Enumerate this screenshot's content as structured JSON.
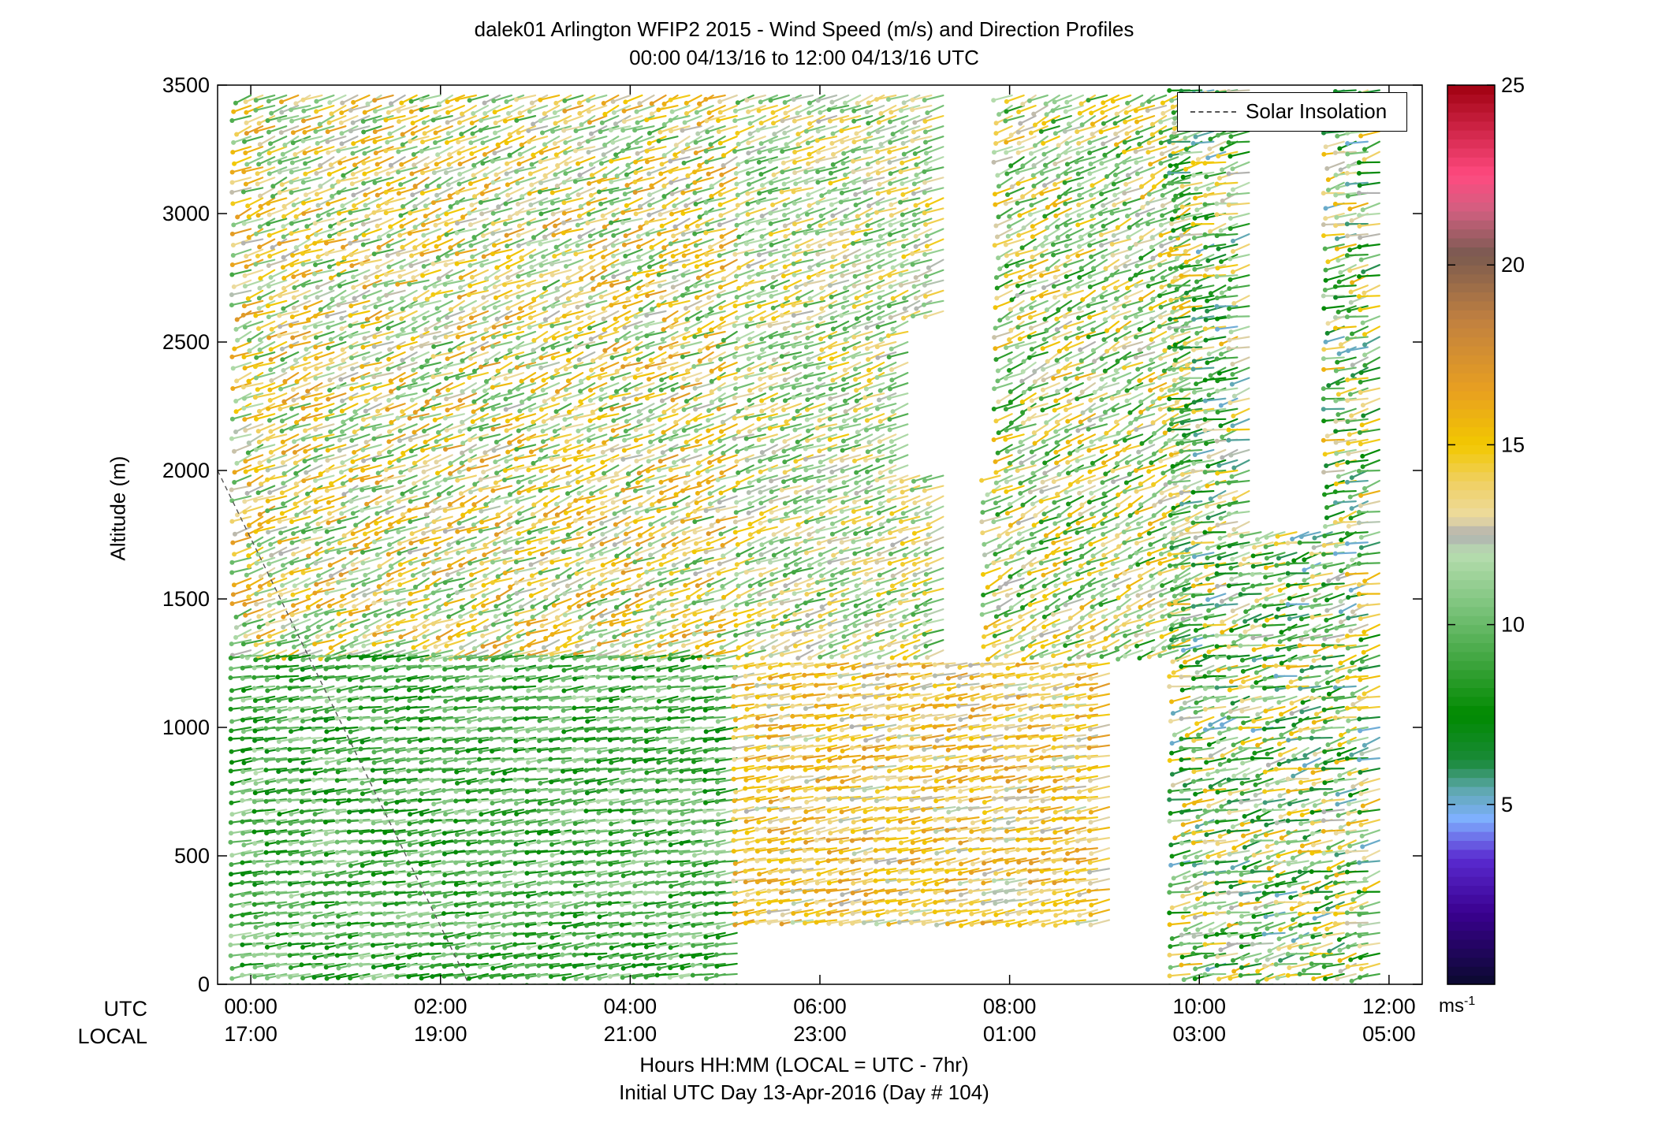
{
  "chart_data": {
    "type": "wind-barb-profile",
    "title": "dalek01 Arlington WFIP2 2015 - Wind Speed (m/s) and Direction Profiles",
    "subtitle": "00:00 04/13/16 to 12:00 04/13/16  UTC",
    "ylabel": "Altitude (m)",
    "xlabel": "Hours HH:MM  (LOCAL = UTC - 7hr)",
    "xlabel2": "Initial UTC Day 13-Apr-2016 (Day # 104)",
    "row_label_utc": "UTC",
    "row_label_local": "LOCAL",
    "ylim": [
      0,
      3500
    ],
    "yticks": [
      "0",
      "500",
      "1000",
      "1500",
      "2000",
      "2500",
      "3000",
      "3500"
    ],
    "xlim_hours": [
      -0.35,
      12.35
    ],
    "xticks_utc": [
      "00:00",
      "02:00",
      "04:00",
      "06:00",
      "08:00",
      "10:00",
      "12:00"
    ],
    "xticks_local": [
      "17:00",
      "19:00",
      "21:00",
      "23:00",
      "01:00",
      "03:00",
      "05:00"
    ],
    "legend": [
      {
        "name": "Solar Insolation",
        "style": "dashed",
        "color": "#555555"
      }
    ],
    "colorbar": {
      "ticks": [
        "5",
        "10",
        "15",
        "20",
        "25"
      ],
      "range": [
        0,
        25
      ],
      "unit": "ms",
      "unit_exp": "-1",
      "stops": [
        [
          0,
          "#0a0a2e"
        ],
        [
          2,
          "#3a0090"
        ],
        [
          3.5,
          "#5a2ad0"
        ],
        [
          4.6,
          "#7fb0ff"
        ],
        [
          5.4,
          "#5fa8b0"
        ],
        [
          6.2,
          "#1a8a3a"
        ],
        [
          7.5,
          "#008a00"
        ],
        [
          9,
          "#3fa53f"
        ],
        [
          10.5,
          "#7cc47c"
        ],
        [
          12,
          "#b8ddb0"
        ],
        [
          12.5,
          "#b0b0b0"
        ],
        [
          13,
          "#ecdba0"
        ],
        [
          14,
          "#f0d060"
        ],
        [
          15,
          "#f2c800"
        ],
        [
          16.5,
          "#e8a020"
        ],
        [
          18.5,
          "#c08040"
        ],
        [
          20.3,
          "#7a5a50"
        ],
        [
          21.5,
          "#d06080"
        ],
        [
          22.5,
          "#ff4a80"
        ],
        [
          25,
          "#a00010"
        ]
      ]
    },
    "insolation_line": [
      [
        -0.35,
        2000
      ],
      [
        2.3,
        0
      ]
    ],
    "profile_regions": [
      {
        "t0": 0.0,
        "t1": 5.15,
        "h0": 1300,
        "h1": 3480,
        "speed": [
          9,
          17
        ],
        "dir": [
          220,
          250
        ]
      },
      {
        "t0": 0.0,
        "t1": 5.15,
        "h0": 0,
        "h1": 1290,
        "speed": [
          7,
          12
        ],
        "dir": [
          245,
          265
        ]
      },
      {
        "t0": 5.3,
        "t1": 7.3,
        "h0": 1300,
        "h1": 3480,
        "speed": [
          9,
          15
        ],
        "dir": [
          225,
          250
        ]
      },
      {
        "t0": 5.3,
        "t1": 9.05,
        "h0": 250,
        "h1": 1280,
        "speed": [
          12,
          17
        ],
        "dir": [
          240,
          262
        ]
      },
      {
        "t0": 7.9,
        "t1": 9.9,
        "h0": 1300,
        "h1": 3480,
        "speed": [
          8,
          16
        ],
        "dir": [
          215,
          245
        ]
      },
      {
        "t0": 9.9,
        "t1": 12.0,
        "h0": 0,
        "h1": 3480,
        "speed": [
          5,
          16
        ],
        "dir": [
          225,
          270
        ]
      }
    ],
    "gaps": [
      {
        "t0": 7.35,
        "t1": 7.95,
        "h0": 2600,
        "h1": 3500
      },
      {
        "t0": 6.95,
        "t1": 8.0,
        "h0": 2000,
        "h1": 2600
      },
      {
        "t0": 10.6,
        "t1": 11.5,
        "h0": 1800,
        "h1": 3500
      },
      {
        "t0": 5.3,
        "t1": 9.8,
        "h0": 0,
        "h1": 240
      }
    ]
  }
}
